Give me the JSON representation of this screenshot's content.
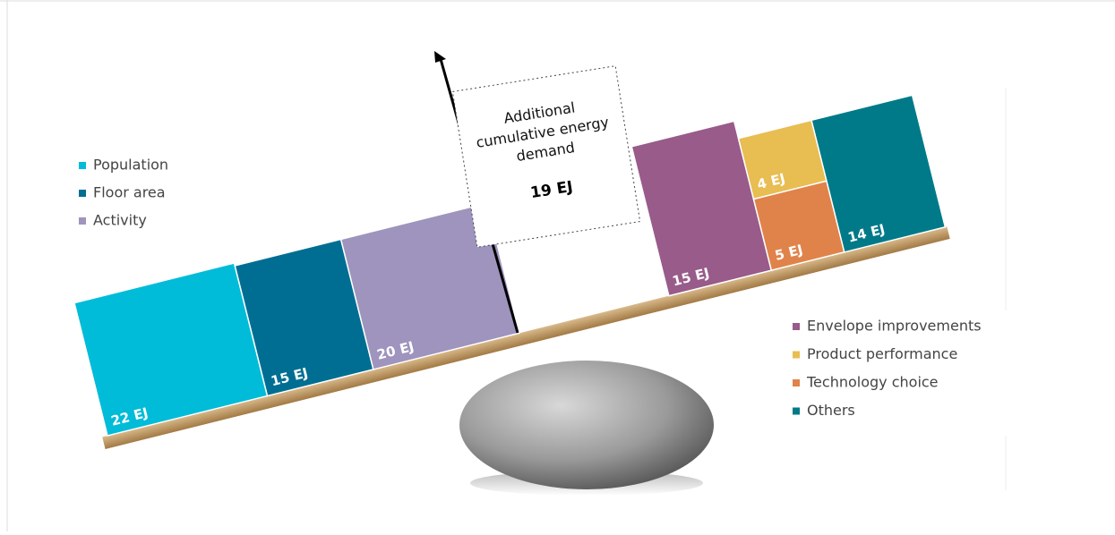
{
  "annotation": {
    "title": "Additional cumulative energy demand",
    "value": "19 EJ"
  },
  "left_blocks": [
    {
      "name": "Population",
      "label": "22 EJ",
      "color": "#00bcd8"
    },
    {
      "name": "Floor area",
      "label": "15 EJ",
      "color": "#006e92"
    },
    {
      "name": "Activity",
      "label": "20 EJ",
      "color": "#9e94bd"
    }
  ],
  "right_blocks": [
    {
      "name": "Envelope improvements",
      "label": "15 EJ",
      "color": "#985b8a"
    },
    {
      "name": "Product performance",
      "label": "4 EJ",
      "color": "#e8bd52"
    },
    {
      "name": "Technology choice",
      "label": "5 EJ",
      "color": "#e0834a"
    },
    {
      "name": "Others",
      "label": "14 EJ",
      "color": "#007a88"
    }
  ]
}
